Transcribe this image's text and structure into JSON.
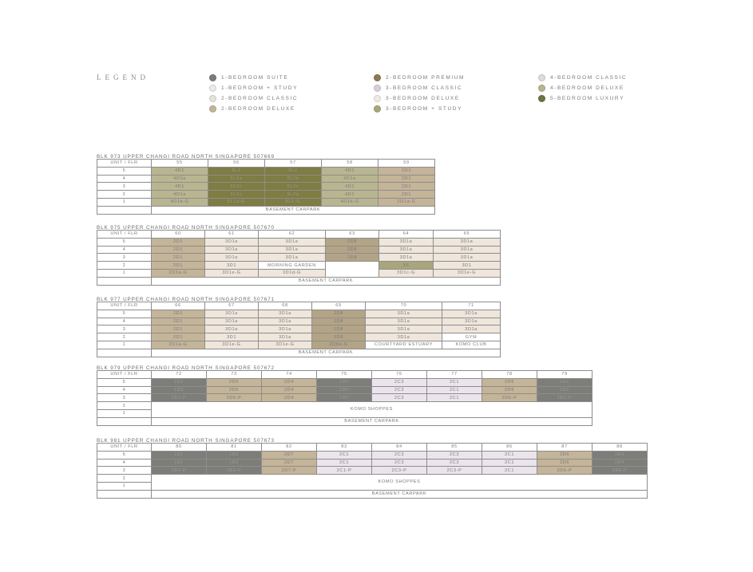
{
  "legend": {
    "title": "LEGEND",
    "items": [
      {
        "label": "1-BEDROOM SUITE",
        "color": "#7b7c78"
      },
      {
        "label": "1-BEDROOM + STUDY",
        "color": "#ebeae8"
      },
      {
        "label": "2-BEDROOM CLASSIC",
        "color": "#e4e2df"
      },
      {
        "label": "2-BEDROOM DELUXE",
        "color": "#c4b498"
      },
      {
        "label": "2-BEDROOM PREMIUM",
        "color": "#8c7b52"
      },
      {
        "label": "3-BEDROOM CLASSIC",
        "color": "#d8cfd7"
      },
      {
        "label": "3-BEDROOM DELUXE",
        "color": "#eeebe2"
      },
      {
        "label": "3-BEDROOM + STUDY",
        "color": "#a9a67c"
      },
      {
        "label": "4-BEDROOM CLASSIC",
        "color": "#dcdcd8"
      },
      {
        "label": "4-BEDROOM DELUXE",
        "color": "#b8b58f"
      },
      {
        "label": "5-BEDROOM LUXURY",
        "color": "#6f7440"
      }
    ]
  },
  "cell_colors": {
    "1B": "#7d7e79",
    "2C": "#ece4ed",
    "2D": "#c4b498",
    "2D8": "#b3a486",
    "3D": "#efe6dc",
    "3S": "#a9a67b",
    "4D": "#b9b590",
    "5L": "#7f7c44",
    "W": "#ffffff"
  },
  "blocks": [
    {
      "title": "BLK 973 UPPER CHANGI ROAD NORTH SINGAPORE 507669",
      "header": [
        "UNIT / FLR",
        "55",
        "56",
        "57",
        "58",
        "59"
      ],
      "rows": [
        {
          "floor": "5",
          "cells": [
            {
              "t": "4D1",
              "k": "4D"
            },
            {
              "t": "5L2",
              "k": "5L"
            },
            {
              "t": "5L2",
              "k": "5L"
            },
            {
              "t": "4D1",
              "k": "4D"
            },
            {
              "t": "2D1",
              "k": "2D"
            }
          ]
        },
        {
          "floor": "4",
          "cells": [
            {
              "t": "4D1a",
              "k": "4D"
            },
            {
              "t": "5L2a",
              "k": "5L"
            },
            {
              "t": "5L2b",
              "k": "5L"
            },
            {
              "t": "4D1a",
              "k": "4D"
            },
            {
              "t": "2D1",
              "k": "2D"
            }
          ]
        },
        {
          "floor": "3",
          "cells": [
            {
              "t": "4D1",
              "k": "4D"
            },
            {
              "t": "5L2c",
              "k": "5L"
            },
            {
              "t": "5L2c",
              "k": "5L"
            },
            {
              "t": "4D1",
              "k": "4D"
            },
            {
              "t": "2D1",
              "k": "2D"
            }
          ]
        },
        {
          "floor": "2",
          "cells": [
            {
              "t": "4D1a",
              "k": "4D"
            },
            {
              "t": "5L2c",
              "k": "5L"
            },
            {
              "t": "5L2a",
              "k": "5L"
            },
            {
              "t": "4D1",
              "k": "4D"
            },
            {
              "t": "2D1",
              "k": "2D"
            }
          ]
        },
        {
          "floor": "1",
          "cells": [
            {
              "t": "4D1b-G",
              "k": "4D"
            },
            {
              "t": "5L1a-G",
              "k": "5L"
            },
            {
              "t": "5L1-G",
              "k": "5L"
            },
            {
              "t": "4D1b-G",
              "k": "4D"
            },
            {
              "t": "2D1a-G",
              "k": "2D"
            }
          ]
        },
        {
          "floor": "",
          "cells": [
            {
              "t": "BASEMENT CARPARK",
              "k": "W",
              "cs": 5
            }
          ]
        }
      ]
    },
    {
      "title": "BLK 975 UPPER CHANGI ROAD NORTH SINGAPORE 507670",
      "header": [
        "UNIT / FLR",
        "60",
        "61",
        "62",
        "63",
        "64",
        "65"
      ],
      "rows": [
        {
          "floor": "5",
          "cells": [
            {
              "t": "2D1",
              "k": "2D"
            },
            {
              "t": "3D1a",
              "k": "3D"
            },
            {
              "t": "3D1a",
              "k": "3D"
            },
            {
              "t": "2D8",
              "k": "2D8"
            },
            {
              "t": "3D1a",
              "k": "3D"
            },
            {
              "t": "3D1a",
              "k": "3D"
            }
          ]
        },
        {
          "floor": "4",
          "cells": [
            {
              "t": "2D1",
              "k": "2D"
            },
            {
              "t": "3D1a",
              "k": "3D"
            },
            {
              "t": "3D1a",
              "k": "3D"
            },
            {
              "t": "2D8",
              "k": "2D8"
            },
            {
              "t": "3D1a",
              "k": "3D"
            },
            {
              "t": "3D1a",
              "k": "3D"
            }
          ]
        },
        {
          "floor": "3",
          "cells": [
            {
              "t": "2D1",
              "k": "2D"
            },
            {
              "t": "3D1a",
              "k": "3D"
            },
            {
              "t": "3D1a",
              "k": "3D"
            },
            {
              "t": "2D8",
              "k": "2D8"
            },
            {
              "t": "3D1a",
              "k": "3D"
            },
            {
              "t": "3D1a",
              "k": "3D"
            }
          ]
        },
        {
          "floor": "2",
          "cells": [
            {
              "t": "2D1",
              "k": "2D"
            },
            {
              "t": "3D1",
              "k": "3D"
            },
            {
              "t": "MORNING GARDEN",
              "k": "W"
            },
            {
              "t": "",
              "k": "W",
              "rs": 2
            },
            {
              "t": "3S",
              "k": "3S"
            },
            {
              "t": "3D1",
              "k": "3D"
            }
          ]
        },
        {
          "floor": "1",
          "cells": [
            {
              "t": "2D1a-G",
              "k": "2D"
            },
            {
              "t": "3D1e-G",
              "k": "3D"
            },
            {
              "t": "3D1d-G",
              "k": "3D"
            },
            {
              "t": "3D1c-G",
              "k": "3D"
            },
            {
              "t": "3D1e-G",
              "k": "3D"
            }
          ]
        },
        {
          "floor": "",
          "cells": [
            {
              "t": "BASEMENT CARPARK",
              "k": "W",
              "cs": 6
            }
          ]
        }
      ]
    },
    {
      "title": "BLK 977 UPPER CHANGI ROAD NORTH SINGAPORE 507671",
      "header": [
        "UNIT / FLR",
        "66",
        "67",
        "68",
        "69",
        "70",
        "71"
      ],
      "rows": [
        {
          "floor": "5",
          "cells": [
            {
              "t": "2D1",
              "k": "2D"
            },
            {
              "t": "3D1a",
              "k": "3D"
            },
            {
              "t": "3D1a",
              "k": "3D"
            },
            {
              "t": "2D8",
              "k": "2D8"
            },
            {
              "t": "3D1a",
              "k": "3D"
            },
            {
              "t": "3D1a",
              "k": "3D"
            }
          ]
        },
        {
          "floor": "4",
          "cells": [
            {
              "t": "2D1",
              "k": "2D"
            },
            {
              "t": "3D1a",
              "k": "3D"
            },
            {
              "t": "3D1a",
              "k": "3D"
            },
            {
              "t": "2D8",
              "k": "2D8"
            },
            {
              "t": "3D1a",
              "k": "3D"
            },
            {
              "t": "3D1a",
              "k": "3D"
            }
          ]
        },
        {
          "floor": "3",
          "cells": [
            {
              "t": "2D1",
              "k": "2D"
            },
            {
              "t": "3D1a",
              "k": "3D"
            },
            {
              "t": "3D1a",
              "k": "3D"
            },
            {
              "t": "2D8",
              "k": "2D8"
            },
            {
              "t": "3D1a",
              "k": "3D"
            },
            {
              "t": "3D1a",
              "k": "3D"
            }
          ]
        },
        {
          "floor": "2",
          "cells": [
            {
              "t": "2D1",
              "k": "2D"
            },
            {
              "t": "3D1",
              "k": "3D"
            },
            {
              "t": "3D1a",
              "k": "3D"
            },
            {
              "t": "2D8",
              "k": "2D8"
            },
            {
              "t": "3D1a",
              "k": "3D"
            },
            {
              "t": "GYM",
              "k": "W"
            }
          ]
        },
        {
          "floor": "1",
          "cells": [
            {
              "t": "2D1a-G",
              "k": "2D"
            },
            {
              "t": "3D1e-G",
              "k": "3D"
            },
            {
              "t": "3D1e-G",
              "k": "3D"
            },
            {
              "t": "2D8a-G",
              "k": "2D8"
            },
            {
              "t": "COURTYARD ESTUARY",
              "k": "W"
            },
            {
              "t": "KOMO CLUB",
              "k": "W"
            }
          ]
        },
        {
          "floor": "",
          "cells": [
            {
              "t": "BASEMENT CARPARK",
              "k": "W",
              "cs": 6
            }
          ]
        }
      ]
    },
    {
      "title": "BLK 979 UPPER CHANGI ROAD NORTH SINGAPORE 507672",
      "header": [
        "UNIT / FLR",
        "72",
        "73",
        "74",
        "75",
        "76",
        "77",
        "78",
        "79"
      ],
      "rows": [
        {
          "floor": "5",
          "cells": [
            {
              "t": "1B2",
              "k": "1B"
            },
            {
              "t": "2D5",
              "k": "2D"
            },
            {
              "t": "2D4",
              "k": "2D"
            },
            {
              "t": "1B5",
              "k": "1B"
            },
            {
              "t": "2C3",
              "k": "2C"
            },
            {
              "t": "2C1",
              "k": "2C"
            },
            {
              "t": "2D6",
              "k": "2D"
            },
            {
              "t": "1B2",
              "k": "1B"
            }
          ]
        },
        {
          "floor": "4",
          "cells": [
            {
              "t": "1B2",
              "k": "1B"
            },
            {
              "t": "2D5",
              "k": "2D"
            },
            {
              "t": "2D4",
              "k": "2D"
            },
            {
              "t": "1B5",
              "k": "1B"
            },
            {
              "t": "2C3",
              "k": "2C"
            },
            {
              "t": "2C1",
              "k": "2C"
            },
            {
              "t": "2D6",
              "k": "2D"
            },
            {
              "t": "1B2",
              "k": "1B"
            }
          ]
        },
        {
          "floor": "3",
          "cells": [
            {
              "t": "1B3-P",
              "k": "1B"
            },
            {
              "t": "2D5-P",
              "k": "2D"
            },
            {
              "t": "2D4",
              "k": "2D"
            },
            {
              "t": "1B5",
              "k": "1B"
            },
            {
              "t": "2C3",
              "k": "2C"
            },
            {
              "t": "2C1",
              "k": "2C"
            },
            {
              "t": "2D6-P",
              "k": "2D"
            },
            {
              "t": "1B3-P",
              "k": "1B"
            }
          ]
        },
        {
          "floor": "2",
          "cells": [
            {
              "t": "KOMO SHOPPES",
              "k": "W",
              "cs": 8,
              "rs": 2
            }
          ]
        },
        {
          "floor": "1",
          "cells": []
        },
        {
          "floor": "",
          "cells": [
            {
              "t": "BASEMENT CARPARK",
              "k": "W",
              "cs": 8
            }
          ]
        }
      ]
    },
    {
      "title": "BLK 981 UPPER CHANGI ROAD NORTH SINGAPORE 507673",
      "header": [
        "UNIT / FLR",
        "80",
        "81",
        "82",
        "83",
        "84",
        "85",
        "86",
        "87",
        "88"
      ],
      "rows": [
        {
          "floor": "5",
          "cells": [
            {
              "t": "1B1",
              "k": "1B"
            },
            {
              "t": "1B3",
              "k": "1B"
            },
            {
              "t": "2D7",
              "k": "2D"
            },
            {
              "t": "2C1",
              "k": "2C"
            },
            {
              "t": "2C3",
              "k": "2C"
            },
            {
              "t": "2C3",
              "k": "2C"
            },
            {
              "t": "2C1",
              "k": "2C"
            },
            {
              "t": "2D6",
              "k": "2D"
            },
            {
              "t": "1B4",
              "k": "1B"
            }
          ]
        },
        {
          "floor": "4",
          "cells": [
            {
              "t": "1B1",
              "k": "1B"
            },
            {
              "t": "1B3",
              "k": "1B"
            },
            {
              "t": "2D7",
              "k": "2D"
            },
            {
              "t": "2C1",
              "k": "2C"
            },
            {
              "t": "2C3",
              "k": "2C"
            },
            {
              "t": "2C3",
              "k": "2C"
            },
            {
              "t": "2C1",
              "k": "2C"
            },
            {
              "t": "2D6",
              "k": "2D"
            },
            {
              "t": "1B4",
              "k": "1B"
            }
          ]
        },
        {
          "floor": "3",
          "cells": [
            {
              "t": "1B1-P",
              "k": "1B"
            },
            {
              "t": "1B3-P",
              "k": "1B"
            },
            {
              "t": "2D7-P",
              "k": "2D"
            },
            {
              "t": "2C1-P",
              "k": "2C"
            },
            {
              "t": "2C3-P",
              "k": "2C"
            },
            {
              "t": "2C3-P",
              "k": "2C"
            },
            {
              "t": "2C1",
              "k": "2C"
            },
            {
              "t": "2D6-P",
              "k": "2D"
            },
            {
              "t": "1B4-P",
              "k": "1B"
            }
          ]
        },
        {
          "floor": "2",
          "cells": [
            {
              "t": "KOMO SHOPPES",
              "k": "W",
              "cs": 9,
              "rs": 2
            }
          ]
        },
        {
          "floor": "1",
          "cells": []
        },
        {
          "floor": "",
          "cells": [
            {
              "t": "BASEMENT CARPARK",
              "k": "W",
              "cs": 9
            }
          ]
        }
      ]
    }
  ]
}
